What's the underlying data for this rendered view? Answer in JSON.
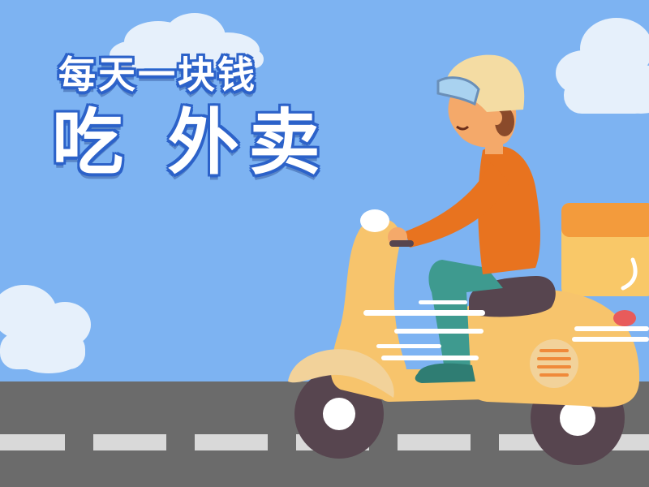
{
  "headline": {
    "line1": "每天一块钱",
    "line2": "吃 外卖"
  },
  "colors": {
    "sky": "#7db3f2",
    "road": "#6b6b6b",
    "lane_marking": "#d9d9d9",
    "scooter_body": "#f7c46c",
    "rider_shirt": "#e8731f",
    "rider_pants": "#3e9a8f",
    "helmet": "#f4dca3",
    "headline_outline": "#2c62c9"
  }
}
